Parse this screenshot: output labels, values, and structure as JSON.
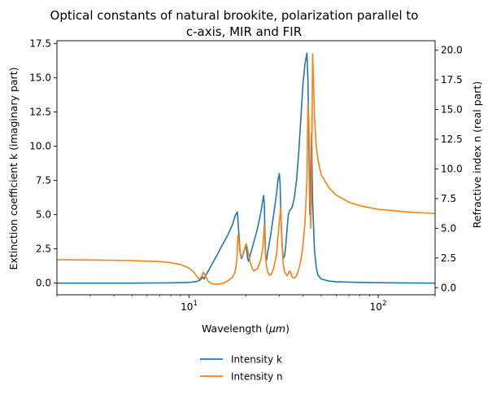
{
  "chart_data": {
    "type": "line",
    "title": "Optical constants of natural brookite, polarization parallel to",
    "subtitle": "c-axis, MIR and FIR",
    "xlabel": "Wavelength (μm)",
    "xlabel_base": "Wavelength (",
    "xlabel_unit": "μm",
    "xlabel_close": ")",
    "ylabel_left": "Extinction coefficient k (imaginary part)",
    "ylabel_right": "Refractive index n (real part)",
    "x_scale": "log",
    "xlim": [
      2,
      200
    ],
    "x_ticks": [
      {
        "value": 10,
        "base": "10",
        "exp": "1"
      },
      {
        "value": 100,
        "base": "10",
        "exp": "2"
      }
    ],
    "ylim_left": [
      -0.85,
      17.7
    ],
    "ylim_right": [
      -0.6,
      20.8
    ],
    "y_ticks_left": [
      "0.0",
      "2.5",
      "5.0",
      "7.5",
      "10.0",
      "12.5",
      "15.0",
      "17.5"
    ],
    "y_ticks_right": [
      "0.0",
      "2.5",
      "5.0",
      "7.5",
      "10.0",
      "12.5",
      "15.0",
      "17.5",
      "20.0"
    ],
    "grid": false,
    "legend_position": "below",
    "colors": {
      "k": "#1f77b4",
      "n": "#ff7f0e"
    },
    "series": [
      {
        "name": "Intensity k",
        "axis": "left",
        "color": "#1f77b4",
        "x": [
          2,
          5,
          8,
          10,
          11,
          11.5,
          11.8,
          12.0,
          12.3,
          13,
          14,
          15,
          16,
          17,
          17.5,
          18,
          18.3,
          18.6,
          18.9,
          19.2,
          19.6,
          20.0,
          20.2,
          20.4,
          20.6,
          21,
          22,
          23,
          24,
          24.5,
          24.8,
          25.0,
          25.2,
          25.4,
          25.7,
          26,
          27,
          28,
          29,
          29.5,
          30,
          30.3,
          30.6,
          31,
          31.5,
          32,
          32.5,
          33,
          33.5,
          34,
          35,
          36,
          37,
          38,
          39,
          40,
          41,
          42,
          42.5,
          43,
          43.5,
          44,
          44.5,
          45,
          46,
          47,
          48,
          50,
          55,
          60,
          80,
          100,
          150,
          200
        ],
        "values": [
          0.0,
          0.0,
          0.02,
          0.05,
          0.12,
          0.25,
          0.45,
          0.3,
          0.6,
          1.2,
          2.0,
          2.8,
          3.5,
          4.3,
          4.9,
          5.2,
          3.8,
          2.3,
          1.8,
          2.0,
          2.4,
          2.8,
          2.3,
          1.8,
          1.6,
          2.0,
          3.0,
          4.0,
          5.2,
          6.0,
          6.4,
          5.8,
          3.5,
          2.0,
          1.7,
          2.2,
          3.5,
          5.0,
          6.5,
          7.5,
          8.0,
          7.2,
          5.0,
          2.8,
          1.8,
          2.0,
          2.8,
          4.0,
          5.0,
          5.3,
          5.5,
          6.2,
          7.5,
          9.5,
          12.0,
          14.5,
          16.0,
          16.8,
          15.0,
          10.0,
          5.0,
          8.0,
          11.0,
          6.0,
          2.5,
          1.2,
          0.6,
          0.3,
          0.15,
          0.1,
          0.05,
          0.03,
          0.01,
          0.0
        ]
      },
      {
        "name": "Intensity n",
        "axis": "right",
        "color": "#ff7f0e",
        "x": [
          2,
          3,
          5,
          7,
          8,
          9,
          10,
          10.6,
          11.0,
          11.3,
          11.6,
          11.9,
          12.2,
          12.6,
          13,
          13.5,
          14,
          15,
          16,
          17,
          17.5,
          17.9,
          18.1,
          18.3,
          18.5,
          18.8,
          19.2,
          19.6,
          20.0,
          20.3,
          20.6,
          21,
          21.5,
          22,
          23,
          24,
          24.6,
          25.0,
          25.3,
          25.6,
          26,
          26.5,
          27,
          28,
          29,
          30,
          30.5,
          31,
          31.5,
          32,
          33,
          34,
          34.5,
          35,
          36,
          37,
          38,
          39,
          40,
          41,
          42,
          42.5,
          43,
          43.5,
          44,
          44.5,
          45,
          45.5,
          46,
          47,
          48,
          50,
          55,
          60,
          70,
          80,
          100,
          150,
          200
        ],
        "values": [
          2.35,
          2.33,
          2.28,
          2.2,
          2.1,
          1.95,
          1.65,
          1.3,
          0.95,
          0.7,
          0.9,
          1.3,
          1.0,
          0.55,
          0.4,
          0.3,
          0.28,
          0.35,
          0.55,
          0.9,
          1.3,
          2.3,
          4.4,
          4.2,
          3.2,
          2.6,
          2.7,
          3.2,
          3.7,
          3.4,
          2.9,
          2.2,
          1.7,
          1.4,
          1.6,
          2.4,
          3.5,
          5.3,
          3.0,
          1.9,
          1.4,
          1.1,
          1.05,
          1.6,
          2.8,
          5.5,
          6.7,
          4.0,
          1.9,
          1.3,
          1.0,
          1.4,
          1.3,
          0.9,
          0.8,
          1.0,
          1.5,
          2.3,
          3.5,
          5.5,
          9.0,
          15.5,
          14.0,
          8.0,
          5.0,
          9.0,
          19.7,
          17.5,
          14.5,
          12.0,
          10.8,
          9.5,
          8.4,
          7.8,
          7.2,
          6.9,
          6.6,
          6.35,
          6.25
        ]
      }
    ]
  }
}
